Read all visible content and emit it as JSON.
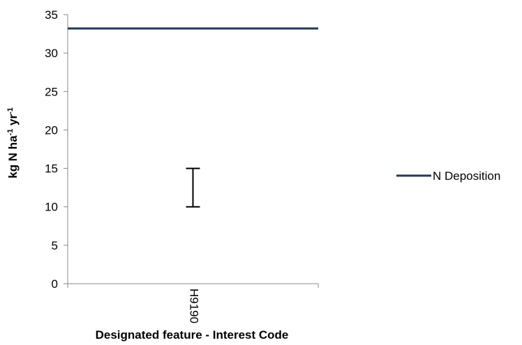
{
  "chart_data": {
    "type": "line",
    "title": "",
    "xlabel": "Designated feature - Interest Code",
    "ylabel_parts": [
      {
        "text": "kg N ha",
        "sup": false
      },
      {
        "text": "-1",
        "sup": true
      },
      {
        "text": " yr",
        "sup": false
      },
      {
        "text": "-1",
        "sup": true
      }
    ],
    "categories": [
      "H9190"
    ],
    "ylim": [
      0,
      35
    ],
    "yticks": [
      0,
      5,
      10,
      15,
      20,
      25,
      30,
      35
    ],
    "grid": false,
    "legend_position": "right",
    "series": [
      {
        "name": "N Deposition",
        "values": [
          33.2
        ],
        "color": "#1f3a5a"
      }
    ],
    "critical_load_range": [
      {
        "category": "H9190",
        "low": 10,
        "high": 15,
        "color": "#000000"
      }
    ]
  }
}
